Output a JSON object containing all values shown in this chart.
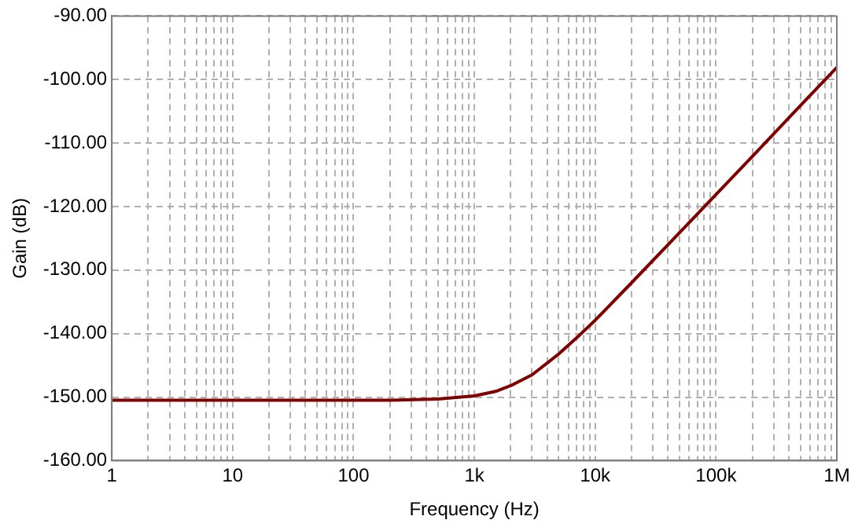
{
  "chart_data": {
    "type": "line",
    "xlabel": "Frequency (Hz)",
    "ylabel": "Gain (dB)",
    "x": [
      1,
      10,
      100,
      200,
      500,
      1000,
      1500,
      2000,
      3000,
      5000,
      7000,
      10000,
      20000,
      50000,
      100000,
      200000,
      500000,
      1000000
    ],
    "series": [
      {
        "color": "#800000",
        "values": [
          -150.5,
          -150.5,
          -150.5,
          -150.5,
          -150.3,
          -149.8,
          -149.1,
          -148.2,
          -146.5,
          -143.2,
          -140.7,
          -137.9,
          -132.0,
          -124.1,
          -118.1,
          -112.1,
          -104.1,
          -98.1
        ]
      }
    ],
    "log": "x",
    "xlim": [
      1,
      1000000
    ],
    "xticks": [
      1,
      {
        "value": 2,
        "label": null
      },
      {
        "value": 3,
        "label": null
      },
      {
        "value": 4,
        "label": null
      },
      {
        "value": 5,
        "label": null
      },
      {
        "value": 6,
        "label": null
      },
      {
        "value": 7,
        "label": null
      },
      {
        "value": 8,
        "label": null
      },
      {
        "value": 9,
        "label": null
      },
      10,
      {
        "value": 20,
        "label": null
      },
      {
        "value": 30,
        "label": null
      },
      {
        "value": 40,
        "label": null
      },
      {
        "value": 50,
        "label": null
      },
      {
        "value": 60,
        "label": null
      },
      {
        "value": 70,
        "label": null
      },
      {
        "value": 80,
        "label": null
      },
      {
        "value": 90,
        "label": null
      },
      100,
      {
        "value": 200,
        "label": null
      },
      {
        "value": 300,
        "label": null
      },
      {
        "value": 400,
        "label": null
      },
      {
        "value": 500,
        "label": null
      },
      {
        "value": 600,
        "label": null
      },
      {
        "value": 700,
        "label": null
      },
      {
        "value": 800,
        "label": null
      },
      {
        "value": 900,
        "label": null
      },
      {
        "value": 1000,
        "label": "1k"
      },
      {
        "value": 2000,
        "label": null
      },
      {
        "value": 3000,
        "label": null
      },
      {
        "value": 4000,
        "label": null
      },
      {
        "value": 5000,
        "label": null
      },
      {
        "value": 6000,
        "label": null
      },
      {
        "value": 7000,
        "label": null
      },
      {
        "value": 8000,
        "label": null
      },
      {
        "value": 9000,
        "label": null
      },
      {
        "value": 10000,
        "label": "10k"
      },
      {
        "value": 20000,
        "label": null
      },
      {
        "value": 30000,
        "label": null
      },
      {
        "value": 40000,
        "label": null
      },
      {
        "value": 50000,
        "label": null
      },
      {
        "value": 60000,
        "label": null
      },
      {
        "value": 70000,
        "label": null
      },
      {
        "value": 80000,
        "label": null
      },
      {
        "value": 90000,
        "label": null
      },
      {
        "value": 100000,
        "label": "100k"
      },
      {
        "value": 200000,
        "label": null
      },
      {
        "value": 300000,
        "label": null
      },
      {
        "value": 400000,
        "label": null
      },
      {
        "value": 500000,
        "label": null
      },
      {
        "value": 600000,
        "label": null
      },
      {
        "value": 700000,
        "label": null
      },
      {
        "value": 800000,
        "label": null
      },
      {
        "value": 900000,
        "label": null
      },
      {
        "value": 1000000,
        "label": "1M"
      }
    ],
    "ylim": [
      -160,
      -90
    ],
    "yticks": [
      {
        "value": -160,
        "label": "-160.00"
      },
      {
        "value": -150,
        "label": "-150.00"
      },
      {
        "value": -140,
        "label": "-140.00"
      },
      {
        "value": -130,
        "label": "-130.00"
      },
      {
        "value": -120,
        "label": "-120.00"
      },
      {
        "value": -110,
        "label": "-110.00"
      },
      {
        "value": -100,
        "label": "-100.00"
      },
      {
        "value": -90,
        "label": "-90.00"
      }
    ],
    "grid": true,
    "legend": false,
    "marker": "none",
    "line_style": "solid"
  }
}
